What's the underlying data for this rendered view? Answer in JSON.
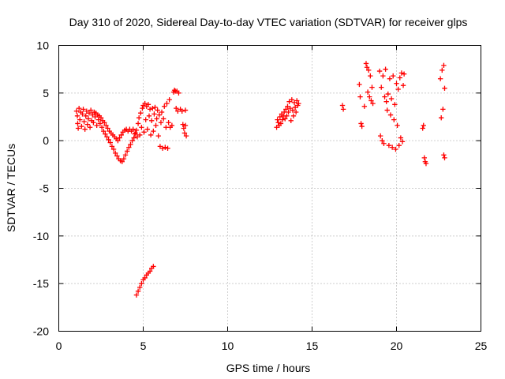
{
  "chart_data": {
    "type": "scatter",
    "title": "Day 310 of 2020, Sidereal Day-to-day VTEC variation (SDTVAR) for receiver glps",
    "xlabel": "GPS time / hours",
    "ylabel": "SDTVAR / TECUs",
    "xlim": [
      0,
      25
    ],
    "ylim": [
      -20,
      10
    ],
    "xticks": [
      "0",
      "5",
      "10",
      "15",
      "20",
      "25"
    ],
    "yticks": [
      "10",
      "5",
      "0",
      "-5",
      "-10",
      "-15",
      "-20"
    ],
    "grid": true,
    "marker": "plus",
    "color": "#ff0000",
    "series": [
      {
        "name": "SDTVAR",
        "points": [
          [
            1.05,
            3.1
          ],
          [
            1.1,
            2.6
          ],
          [
            1.12,
            1.8
          ],
          [
            1.15,
            1.3
          ],
          [
            1.2,
            3.4
          ],
          [
            1.25,
            2.2
          ],
          [
            1.3,
            3.0
          ],
          [
            1.35,
            1.5
          ],
          [
            1.4,
            2.8
          ],
          [
            1.45,
            3.3
          ],
          [
            1.5,
            2.0
          ],
          [
            1.55,
            1.2
          ],
          [
            1.6,
            2.6
          ],
          [
            1.65,
            3.1
          ],
          [
            1.7,
            1.7
          ],
          [
            1.75,
            2.3
          ],
          [
            1.8,
            2.9
          ],
          [
            1.85,
            1.4
          ],
          [
            1.9,
            3.2
          ],
          [
            1.95,
            2.1
          ],
          [
            2.0,
            2.7
          ],
          [
            2.05,
            1.9
          ],
          [
            2.1,
            3.0
          ],
          [
            2.15,
            2.5
          ],
          [
            2.2,
            2.9
          ],
          [
            2.25,
            1.6
          ],
          [
            2.3,
            2.7
          ],
          [
            2.35,
            2.2
          ],
          [
            2.4,
            2.6
          ],
          [
            2.45,
            1.8
          ],
          [
            2.5,
            2.4
          ],
          [
            2.55,
            1.4
          ],
          [
            2.6,
            2.1
          ],
          [
            2.65,
            1.0
          ],
          [
            2.7,
            1.9
          ],
          [
            2.75,
            0.7
          ],
          [
            2.8,
            1.6
          ],
          [
            2.85,
            0.4
          ],
          [
            2.9,
            1.3
          ],
          [
            2.95,
            0.1
          ],
          [
            3.0,
            1.0
          ],
          [
            3.05,
            -0.2
          ],
          [
            3.1,
            0.8
          ],
          [
            3.15,
            -0.6
          ],
          [
            3.2,
            0.6
          ],
          [
            3.25,
            -0.9
          ],
          [
            3.3,
            0.4
          ],
          [
            3.35,
            -1.3
          ],
          [
            3.4,
            0.2
          ],
          [
            3.45,
            -1.6
          ],
          [
            3.5,
            0.0
          ],
          [
            3.55,
            -1.9
          ],
          [
            3.6,
            0.3
          ],
          [
            3.65,
            -2.1
          ],
          [
            3.7,
            0.6
          ],
          [
            3.75,
            -2.2
          ],
          [
            3.8,
            0.9
          ],
          [
            3.85,
            -1.9
          ],
          [
            3.9,
            1.1
          ],
          [
            3.95,
            -1.5
          ],
          [
            4.0,
            1.2
          ],
          [
            4.05,
            -1.1
          ],
          [
            4.1,
            1.0
          ],
          [
            4.15,
            -0.7
          ],
          [
            4.2,
            1.2
          ],
          [
            4.25,
            -0.4
          ],
          [
            4.3,
            1.0
          ],
          [
            4.35,
            0.0
          ],
          [
            4.4,
            1.2
          ],
          [
            4.45,
            0.3
          ],
          [
            4.5,
            0.7
          ],
          [
            4.55,
            0.8
          ],
          [
            4.6,
            1.1
          ],
          [
            4.65,
            0.4
          ],
          [
            4.7,
            1.8
          ],
          [
            4.75,
            2.4
          ],
          [
            4.8,
            0.6
          ],
          [
            4.85,
            2.9
          ],
          [
            4.9,
            1.4
          ],
          [
            4.95,
            3.4
          ],
          [
            5.0,
            3.7
          ],
          [
            5.05,
            0.9
          ],
          [
            5.1,
            3.9
          ],
          [
            5.15,
            2.2
          ],
          [
            5.2,
            3.6
          ],
          [
            5.25,
            1.2
          ],
          [
            5.3,
            3.8
          ],
          [
            5.35,
            2.6
          ],
          [
            5.4,
            3.3
          ],
          [
            5.45,
            0.6
          ],
          [
            5.5,
            2.1
          ],
          [
            5.55,
            3.4
          ],
          [
            5.6,
            1.0
          ],
          [
            5.65,
            2.8
          ],
          [
            5.7,
            3.5
          ],
          [
            5.75,
            1.6
          ],
          [
            5.8,
            2.3
          ],
          [
            5.85,
            3.2
          ],
          [
            5.9,
            0.5
          ],
          [
            5.95,
            2.7
          ],
          [
            6.0,
            -0.6
          ],
          [
            6.05,
            1.9
          ],
          [
            6.1,
            3.0
          ],
          [
            6.15,
            -0.8
          ],
          [
            6.2,
            2.3
          ],
          [
            6.25,
            3.6
          ],
          [
            6.3,
            -0.7
          ],
          [
            6.35,
            1.4
          ],
          [
            6.4,
            3.9
          ],
          [
            6.45,
            -0.8
          ],
          [
            6.5,
            1.9
          ],
          [
            6.55,
            4.3
          ],
          [
            6.6,
            1.4
          ],
          [
            6.7,
            1.6
          ],
          [
            6.8,
            5.1
          ],
          [
            6.85,
            5.3
          ],
          [
            6.9,
            5.2
          ],
          [
            6.95,
            3.4
          ],
          [
            7.0,
            5.2
          ],
          [
            7.05,
            3.1
          ],
          [
            7.1,
            5.0
          ],
          [
            7.2,
            3.3
          ],
          [
            7.3,
            3.1
          ],
          [
            7.35,
            1.7
          ],
          [
            7.4,
            1.3
          ],
          [
            7.45,
            0.8
          ],
          [
            7.5,
            3.2
          ],
          [
            7.55,
            0.5
          ],
          [
            7.5,
            1.6
          ],
          [
            4.6,
            -16.2
          ],
          [
            4.7,
            -15.8
          ],
          [
            4.8,
            -15.4
          ],
          [
            4.9,
            -15.0
          ],
          [
            5.0,
            -14.6
          ],
          [
            5.1,
            -14.4
          ],
          [
            5.2,
            -14.1
          ],
          [
            5.3,
            -13.9
          ],
          [
            5.4,
            -13.7
          ],
          [
            5.5,
            -13.4
          ],
          [
            5.6,
            -13.2
          ],
          [
            12.9,
            1.4
          ],
          [
            12.95,
            2.2
          ],
          [
            13.0,
            1.9
          ],
          [
            13.05,
            1.6
          ],
          [
            13.1,
            2.5
          ],
          [
            13.15,
            1.8
          ],
          [
            13.2,
            2.8
          ],
          [
            13.25,
            2.2
          ],
          [
            13.3,
            2.6
          ],
          [
            13.35,
            3.0
          ],
          [
            13.4,
            2.3
          ],
          [
            13.45,
            3.3
          ],
          [
            13.5,
            2.6
          ],
          [
            13.55,
            3.6
          ],
          [
            13.6,
            3.0
          ],
          [
            13.65,
            4.1
          ],
          [
            13.7,
            3.4
          ],
          [
            13.75,
            2.1
          ],
          [
            13.8,
            4.3
          ],
          [
            13.85,
            3.2
          ],
          [
            13.9,
            2.6
          ],
          [
            13.95,
            4.0
          ],
          [
            14.0,
            3.5
          ],
          [
            14.05,
            3.0
          ],
          [
            14.1,
            4.2
          ],
          [
            14.15,
            3.7
          ],
          [
            14.2,
            3.9
          ],
          [
            16.8,
            3.7
          ],
          [
            16.85,
            3.3
          ],
          [
            17.8,
            5.9
          ],
          [
            17.85,
            4.6
          ],
          [
            17.9,
            1.8
          ],
          [
            17.95,
            1.5
          ],
          [
            18.1,
            3.6
          ],
          [
            18.2,
            8.1
          ],
          [
            18.25,
            7.7
          ],
          [
            18.3,
            5.1
          ],
          [
            18.35,
            7.4
          ],
          [
            18.4,
            4.6
          ],
          [
            18.45,
            6.8
          ],
          [
            18.5,
            4.2
          ],
          [
            18.55,
            5.6
          ],
          [
            18.6,
            3.9
          ],
          [
            19.0,
            7.3
          ],
          [
            19.05,
            0.5
          ],
          [
            19.1,
            5.6
          ],
          [
            19.15,
            0.0
          ],
          [
            19.2,
            6.8
          ],
          [
            19.25,
            -0.3
          ],
          [
            19.3,
            4.6
          ],
          [
            19.35,
            7.5
          ],
          [
            19.4,
            4.1
          ],
          [
            19.45,
            3.2
          ],
          [
            19.5,
            4.9
          ],
          [
            19.55,
            -0.5
          ],
          [
            19.6,
            6.5
          ],
          [
            19.65,
            2.7
          ],
          [
            19.7,
            4.4
          ],
          [
            19.75,
            -0.7
          ],
          [
            19.8,
            6.8
          ],
          [
            19.85,
            2.2
          ],
          [
            19.9,
            3.8
          ],
          [
            19.95,
            -0.9
          ],
          [
            20.0,
            6.0
          ],
          [
            20.05,
            1.6
          ],
          [
            20.1,
            5.4
          ],
          [
            20.15,
            -0.5
          ],
          [
            20.2,
            6.6
          ],
          [
            20.25,
            0.3
          ],
          [
            20.3,
            7.1
          ],
          [
            20.35,
            -0.1
          ],
          [
            20.4,
            5.8
          ],
          [
            20.45,
            7.0
          ],
          [
            21.55,
            1.3
          ],
          [
            21.6,
            1.6
          ],
          [
            21.65,
            -1.8
          ],
          [
            21.7,
            -2.2
          ],
          [
            21.75,
            -2.4
          ],
          [
            22.6,
            6.5
          ],
          [
            22.65,
            2.4
          ],
          [
            22.7,
            7.4
          ],
          [
            22.75,
            3.3
          ],
          [
            22.8,
            7.9
          ],
          [
            22.85,
            5.5
          ],
          [
            22.8,
            -1.5
          ],
          [
            22.85,
            -1.8
          ]
        ]
      }
    ]
  }
}
